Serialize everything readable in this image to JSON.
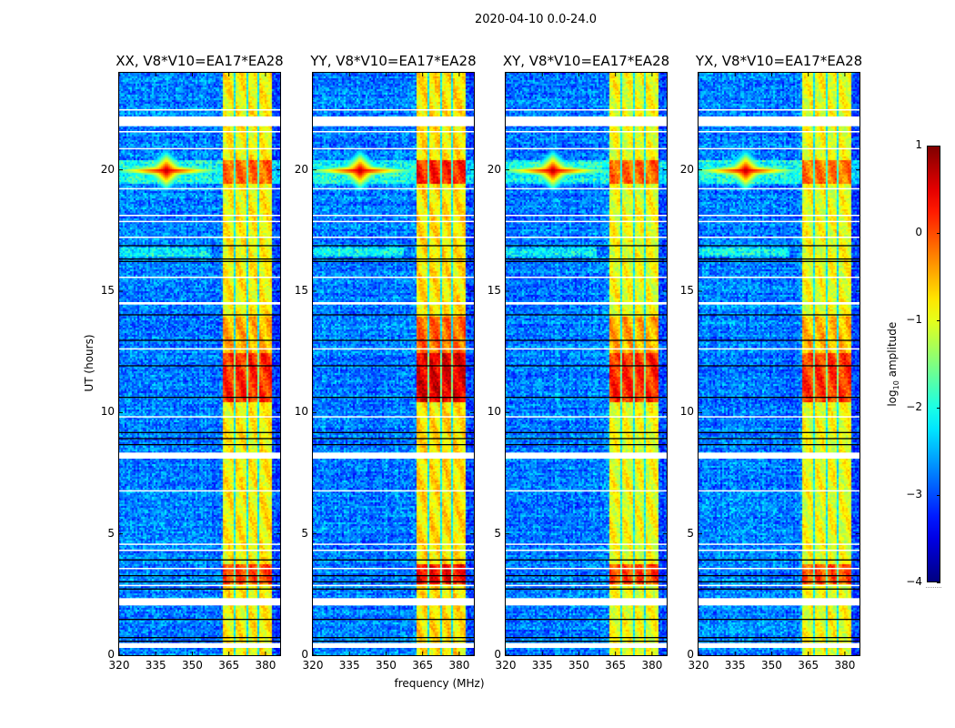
{
  "figure_title": "2020-04-10 0.0-24.0",
  "chart_data": [
    {
      "type": "heatmap",
      "panels": [
        {
          "title": "XX, V8*V10=EA17*EA28",
          "band_boost": 0.0,
          "enh_boost": 0.0
        },
        {
          "title": "YY, V8*V10=EA17*EA28",
          "band_boost": 0.1,
          "enh_boost": 0.25
        },
        {
          "title": "XY, V8*V10=EA17*EA28",
          "band_boost": -0.1,
          "enh_boost": 0.1
        },
        {
          "title": "YX, V8*V10=EA17*EA28",
          "band_boost": -0.1,
          "enh_boost": 0.05
        }
      ],
      "xlabel": "frequency (MHz)",
      "ylabel": "UT (hours)",
      "xlim": [
        320,
        386
      ],
      "ylim": [
        0,
        24
      ],
      "xticks": [
        320,
        335,
        350,
        365,
        380
      ],
      "yticks": [
        0,
        5,
        10,
        15,
        20
      ],
      "colormap": "jet",
      "background_level": -2.75,
      "rfi_band": {
        "freq": [
          362,
          382
        ],
        "level": -0.85
      },
      "band_gaps_mhz": [
        [
          366.7,
          367.5
        ],
        [
          371.5,
          372.3
        ],
        [
          376.5,
          377.3
        ]
      ],
      "enhancements": [
        {
          "time": [
            10.5,
            12.5
          ],
          "freq": [
            362,
            382
          ],
          "add": 1.0
        },
        {
          "time": [
            12.5,
            14.0
          ],
          "freq": [
            362,
            382
          ],
          "add": 0.35
        },
        {
          "time": [
            3.0,
            3.8
          ],
          "freq": [
            362,
            382
          ],
          "add": 0.85
        },
        {
          "time": [
            19.5,
            20.4
          ],
          "freq": [
            320,
            386
          ],
          "add": 0.7
        },
        {
          "time": [
            16.5,
            16.8
          ],
          "freq": [
            320,
            357
          ],
          "add": 0.6
        }
      ],
      "spike": {
        "freq": 339,
        "time": 20.0,
        "level": 0.9
      },
      "flagged_rows_hours": [
        [
          21.8,
          22.2
        ],
        [
          8.1,
          8.35
        ],
        [
          2.05,
          2.35
        ],
        [
          0.3,
          0.5
        ],
        [
          22.45,
          22.5
        ],
        [
          21.55,
          21.6
        ],
        [
          20.85,
          20.9
        ],
        [
          19.2,
          19.25
        ],
        [
          18.1,
          18.15
        ],
        [
          17.85,
          17.9
        ],
        [
          17.2,
          17.25
        ],
        [
          15.55,
          15.6
        ],
        [
          14.45,
          14.55
        ],
        [
          12.6,
          12.65
        ],
        [
          9.8,
          9.85
        ],
        [
          6.75,
          6.8
        ],
        [
          4.55,
          4.6
        ],
        [
          4.3,
          4.35
        ],
        [
          3.55,
          3.6
        ],
        [
          2.85,
          2.9
        ]
      ],
      "dark_rows_hours": [
        16.35,
        16.25,
        16.9,
        14.05,
        13.0,
        11.95,
        10.65,
        9.2,
        8.95,
        8.7,
        3.95,
        3.3,
        3.05,
        2.75,
        1.5,
        0.75,
        0.6
      ],
      "colorbar": {
        "label_prefix": "log",
        "label_sub": "10",
        "label_suffix": " amplitude",
        "range": [
          -4,
          1
        ],
        "ticks": [
          "1",
          "0",
          "−1",
          "−2",
          "−3",
          "−4"
        ],
        "tick_values": [
          1,
          0,
          -1,
          -2,
          -3,
          -4
        ]
      }
    }
  ]
}
